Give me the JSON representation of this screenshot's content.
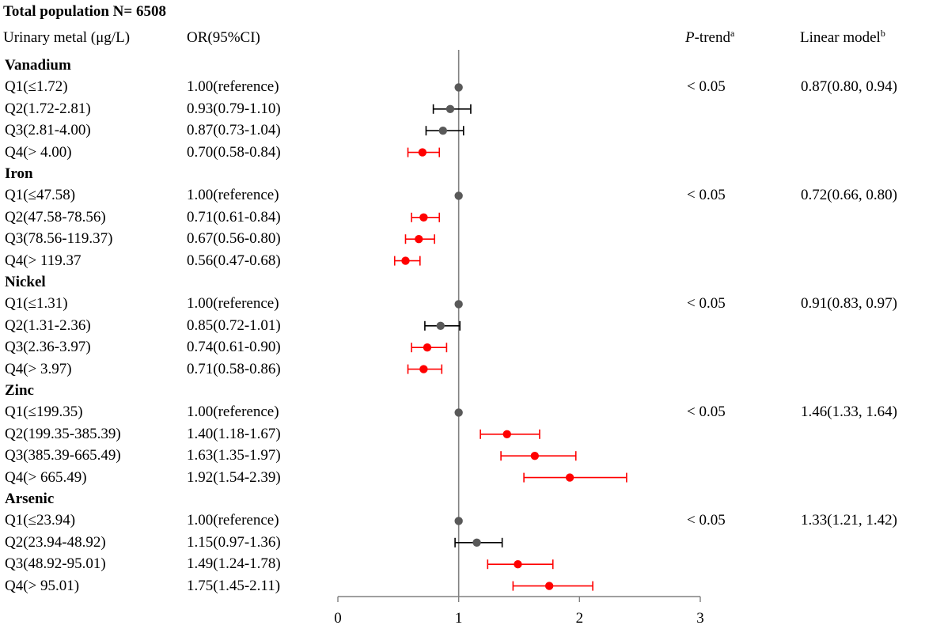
{
  "chart_data": {
    "type": "forest",
    "title": "Total population N= 6508",
    "columns": {
      "metal_header": "Urinary metal (μg/L)",
      "or_header": "OR(95%CI)",
      "ptrend_header_main": "P",
      "ptrend_header_rest": "-trend",
      "ptrend_header_sup": "a",
      "linear_header": "Linear model",
      "linear_header_sup": "b"
    },
    "reference_line": 1,
    "xlim": [
      0,
      3
    ],
    "xticks": [
      "0",
      "1",
      "2",
      "3"
    ],
    "colors": {
      "significant": "#ff0000",
      "nonsignificant": "#000000",
      "reference_dot": "#595959",
      "axis": "#808080"
    },
    "groups": [
      {
        "name": "Vanadium",
        "p_trend": "< 0.05",
        "linear": "0.87(0.80, 0.94)",
        "rows": [
          {
            "label": "Q1(≤1.72)",
            "or_text": "1.00(reference)",
            "or": 1.0,
            "lo": 1.0,
            "hi": 1.0,
            "sig": false
          },
          {
            "label": "Q2(1.72-2.81)",
            "or_text": "0.93(0.79-1.10)",
            "or": 0.93,
            "lo": 0.79,
            "hi": 1.1,
            "sig": false
          },
          {
            "label": "Q3(2.81-4.00)",
            "or_text": "0.87(0.73-1.04)",
            "or": 0.87,
            "lo": 0.73,
            "hi": 1.04,
            "sig": false
          },
          {
            "label": "Q4(> 4.00)",
            "or_text": "0.70(0.58-0.84)",
            "or": 0.7,
            "lo": 0.58,
            "hi": 0.84,
            "sig": true
          }
        ]
      },
      {
        "name": "Iron",
        "p_trend": "< 0.05",
        "linear": "0.72(0.66, 0.80)",
        "rows": [
          {
            "label": "Q1(≤47.58)",
            "or_text": "1.00(reference)",
            "or": 1.0,
            "lo": 1.0,
            "hi": 1.0,
            "sig": false
          },
          {
            "label": "Q2(47.58-78.56)",
            "or_text": "0.71(0.61-0.84)",
            "or": 0.71,
            "lo": 0.61,
            "hi": 0.84,
            "sig": true
          },
          {
            "label": "Q3(78.56-119.37)",
            "or_text": "0.67(0.56-0.80)",
            "or": 0.67,
            "lo": 0.56,
            "hi": 0.8,
            "sig": true
          },
          {
            "label": "Q4(> 119.37",
            "or_text": "0.56(0.47-0.68)",
            "or": 0.56,
            "lo": 0.47,
            "hi": 0.68,
            "sig": true
          }
        ]
      },
      {
        "name": "Nickel",
        "p_trend": "< 0.05",
        "linear": "0.91(0.83, 0.97)",
        "rows": [
          {
            "label": "Q1(≤1.31)",
            "or_text": "1.00(reference)",
            "or": 1.0,
            "lo": 1.0,
            "hi": 1.0,
            "sig": false
          },
          {
            "label": "Q2(1.31-2.36)",
            "or_text": "0.85(0.72-1.01)",
            "or": 0.85,
            "lo": 0.72,
            "hi": 1.01,
            "sig": false
          },
          {
            "label": "Q3(2.36-3.97)",
            "or_text": "0.74(0.61-0.90)",
            "or": 0.74,
            "lo": 0.61,
            "hi": 0.9,
            "sig": true
          },
          {
            "label": "Q4(> 3.97)",
            "or_text": "0.71(0.58-0.86)",
            "or": 0.71,
            "lo": 0.58,
            "hi": 0.86,
            "sig": true
          }
        ]
      },
      {
        "name": "Zinc",
        "p_trend": "< 0.05",
        "linear": "1.46(1.33, 1.64)",
        "rows": [
          {
            "label": "Q1(≤199.35)",
            "or_text": "1.00(reference)",
            "or": 1.0,
            "lo": 1.0,
            "hi": 1.0,
            "sig": false
          },
          {
            "label": "Q2(199.35-385.39)",
            "or_text": "1.40(1.18-1.67)",
            "or": 1.4,
            "lo": 1.18,
            "hi": 1.67,
            "sig": true
          },
          {
            "label": "Q3(385.39-665.49)",
            "or_text": "1.63(1.35-1.97)",
            "or": 1.63,
            "lo": 1.35,
            "hi": 1.97,
            "sig": true
          },
          {
            "label": "Q4(> 665.49)",
            "or_text": "1.92(1.54-2.39)",
            "or": 1.92,
            "lo": 1.54,
            "hi": 2.39,
            "sig": true
          }
        ]
      },
      {
        "name": "Arsenic",
        "p_trend": "< 0.05",
        "linear": "1.33(1.21, 1.42)",
        "rows": [
          {
            "label": "Q1(≤23.94)",
            "or_text": "1.00(reference)",
            "or": 1.0,
            "lo": 1.0,
            "hi": 1.0,
            "sig": false
          },
          {
            "label": "Q2(23.94-48.92)",
            "or_text": "1.15(0.97-1.36)",
            "or": 1.15,
            "lo": 0.97,
            "hi": 1.36,
            "sig": false
          },
          {
            "label": "Q3(48.92-95.01)",
            "or_text": "1.49(1.24-1.78)",
            "or": 1.49,
            "lo": 1.24,
            "hi": 1.78,
            "sig": true
          },
          {
            "label": "Q4(> 95.01)",
            "or_text": "1.75(1.45-2.11)",
            "or": 1.75,
            "lo": 1.45,
            "hi": 2.11,
            "sig": true
          }
        ]
      }
    ]
  }
}
